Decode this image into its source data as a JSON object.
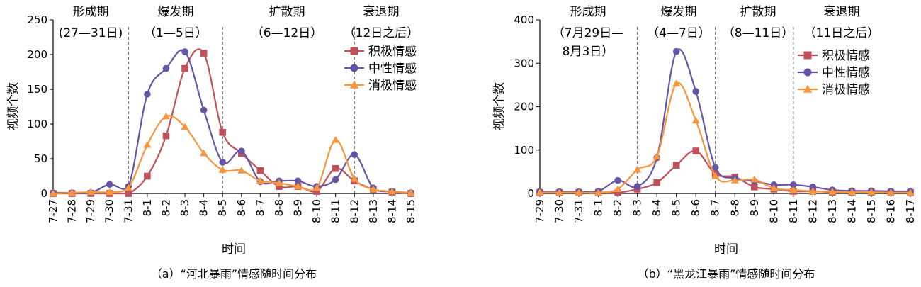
{
  "colors": {
    "positive": "#c0505a",
    "neutral": "#6655a6",
    "negative": "#f7963c"
  },
  "chart_data": [
    {
      "type": "line",
      "title": "",
      "caption": "（a）“河北暴雨”情感随时间分布",
      "xlabel": "时间",
      "ylabel": "视频个数",
      "ylim": [
        0,
        250
      ],
      "yticks": [
        "0",
        "50",
        "100",
        "150",
        "200",
        "250"
      ],
      "categories": [
        "7-27",
        "7-28",
        "7-29",
        "7-30",
        "7-31",
        "8-1",
        "8-2",
        "8-3",
        "8-4",
        "8-5",
        "8-6",
        "8-7",
        "8-8",
        "8-9",
        "8-10",
        "8-11",
        "8-12",
        "8-13",
        "8-14",
        "8-15"
      ],
      "phases": [
        {
          "name": "形成期",
          "range_lines": [
            "(27—31日)"
          ]
        },
        {
          "name": "爆发期",
          "range_lines": [
            "（1—5日）"
          ]
        },
        {
          "name": "扩散期",
          "range_lines": [
            "（6—12日）"
          ]
        },
        {
          "name": "衰退期",
          "range_lines": [
            "（12日之后）"
          ]
        }
      ],
      "dividers_after_category": [
        "7-31",
        "8-5",
        "8-12"
      ],
      "legend_position": "top-right",
      "series": [
        {
          "name": "积极情感",
          "marker": "square",
          "values": [
            0,
            0,
            0,
            0,
            0,
            25,
            83,
            180,
            202,
            88,
            58,
            33,
            10,
            10,
            3,
            36,
            18,
            6,
            2,
            0
          ]
        },
        {
          "name": "中性情感",
          "marker": "circle",
          "values": [
            1,
            1,
            1,
            13,
            10,
            143,
            180,
            204,
            120,
            45,
            61,
            17,
            18,
            18,
            10,
            20,
            56,
            8,
            3,
            1
          ]
        },
        {
          "name": "消极情感",
          "marker": "triangle",
          "values": [
            0,
            1,
            2,
            2,
            8,
            70,
            111,
            96,
            58,
            34,
            33,
            18,
            15,
            10,
            8,
            77,
            21,
            6,
            3,
            1
          ]
        }
      ]
    },
    {
      "type": "line",
      "title": "",
      "caption": "（b）“黑龙江暴雨”情感随时间分布",
      "xlabel": "时间",
      "ylabel": "视频个数",
      "ylim": [
        0,
        400
      ],
      "yticks": [
        "0",
        "100",
        "200",
        "300",
        "400"
      ],
      "categories": [
        "7-29",
        "7-30",
        "7-31",
        "8-1",
        "8-2",
        "8-3",
        "8-4",
        "8-5",
        "8-6",
        "8-7",
        "8-8",
        "8-9",
        "8-10",
        "8-11",
        "8-12",
        "8-13",
        "8-14",
        "8-15",
        "8-16",
        "8-17"
      ],
      "phases": [
        {
          "name": "形成期",
          "range_lines": [
            "（7月29日—",
            "8月3日）"
          ]
        },
        {
          "name": "爆发期",
          "range_lines": [
            "（4—7日）"
          ]
        },
        {
          "name": "扩散期",
          "range_lines": [
            "（8—11日）"
          ]
        },
        {
          "name": "衰退期",
          "range_lines": [
            "（11日之后）"
          ]
        }
      ],
      "dividers_after_category": [
        "8-3",
        "8-7",
        "8-11"
      ],
      "legend_position": "top-right",
      "series": [
        {
          "name": "积极情感",
          "marker": "square",
          "values": [
            2,
            2,
            2,
            2,
            2,
            10,
            25,
            65,
            98,
            45,
            38,
            15,
            10,
            5,
            5,
            3,
            3,
            3,
            2,
            2
          ]
        },
        {
          "name": "中性情感",
          "marker": "circle",
          "values": [
            4,
            4,
            4,
            5,
            30,
            16,
            82,
            327,
            235,
            60,
            35,
            28,
            20,
            20,
            15,
            8,
            6,
            6,
            5,
            5
          ]
        },
        {
          "name": "消极情感",
          "marker": "triangle",
          "values": [
            2,
            2,
            2,
            2,
            10,
            55,
            85,
            253,
            168,
            40,
            30,
            32,
            12,
            8,
            5,
            4,
            3,
            3,
            2,
            2
          ]
        }
      ]
    }
  ]
}
